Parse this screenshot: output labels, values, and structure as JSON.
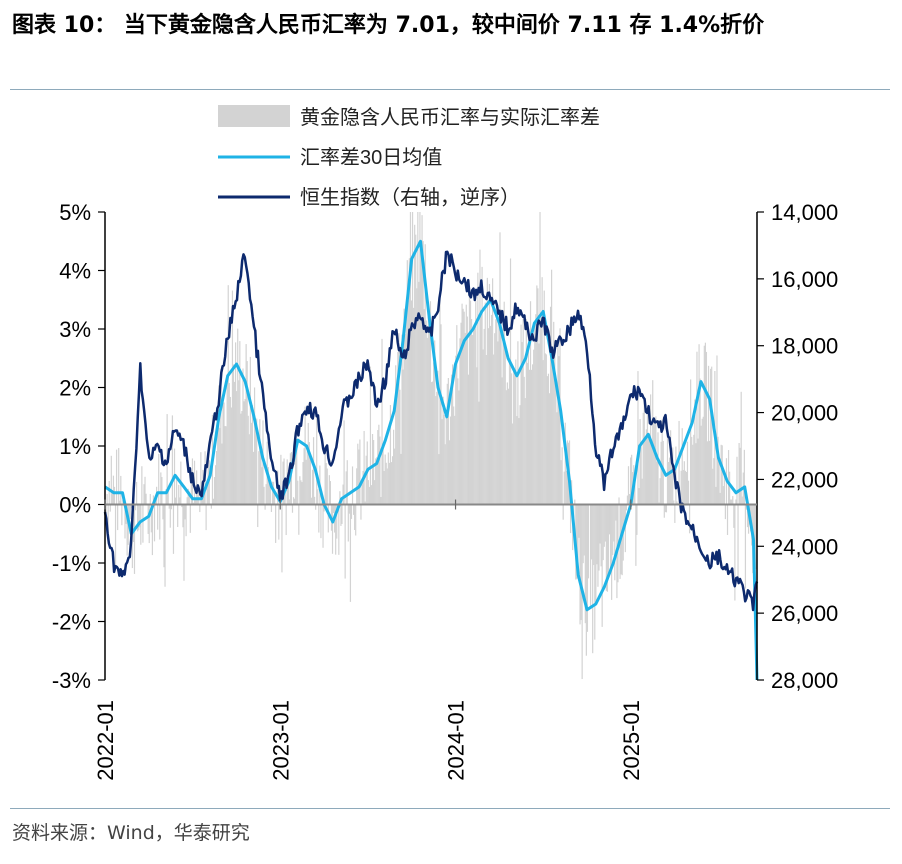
{
  "title": "图表 10： 当下黄金隐含人民币汇率为 7.01，较中间价 7.11 存 1.4%折价",
  "source": "资料来源：Wind，华泰研究",
  "colors": {
    "bars": "#d3d3d3",
    "ma": "#1fb3e6",
    "hsi": "#0d2a6e",
    "axis": "#000000",
    "rule": "#8eaabb"
  },
  "chart_data": {
    "type": "bar+line",
    "title": "",
    "x_ticks": [
      "2022-01",
      "2023-01",
      "2024-01",
      "2025-01"
    ],
    "x_range": [
      2022.0,
      2025.72
    ],
    "left_axis": {
      "min": -3,
      "max": 5,
      "ticks": [
        "5%",
        "4%",
        "3%",
        "2%",
        "1%",
        "0%",
        "-1%",
        "-2%",
        "-3%"
      ]
    },
    "right_axis": {
      "min": 14000,
      "max": 28000,
      "reversed": true,
      "ticks": [
        "14,000",
        "16,000",
        "18,000",
        "20,000",
        "22,000",
        "24,000",
        "26,000",
        "28,000"
      ]
    },
    "legend": [
      {
        "key": "bars",
        "label": "黄金隐含人民币汇率与实际汇率差"
      },
      {
        "key": "ma",
        "label": "汇率差30日均值"
      },
      {
        "key": "hsi",
        "label": "恒生指数（右轴，逆序）"
      }
    ],
    "series": [
      {
        "name": "汇率差30日均值",
        "axis": "left",
        "x": [
          2022.0,
          2022.05,
          2022.1,
          2022.15,
          2022.2,
          2022.25,
          2022.3,
          2022.35,
          2022.4,
          2022.45,
          2022.5,
          2022.55,
          2022.6,
          2022.65,
          2022.7,
          2022.75,
          2022.8,
          2022.85,
          2022.9,
          2022.95,
          2023.0,
          2023.05,
          2023.1,
          2023.15,
          2023.2,
          2023.25,
          2023.3,
          2023.35,
          2023.4,
          2023.45,
          2023.5,
          2023.55,
          2023.6,
          2023.65,
          2023.7,
          2023.75,
          2023.8,
          2023.85,
          2023.9,
          2023.95,
          2024.0,
          2024.05,
          2024.1,
          2024.15,
          2024.2,
          2024.25,
          2024.3,
          2024.35,
          2024.4,
          2024.45,
          2024.5,
          2024.55,
          2024.6,
          2024.65,
          2024.7,
          2024.75,
          2024.8,
          2024.85,
          2024.9,
          2024.95,
          2025.0,
          2025.05,
          2025.1,
          2025.15,
          2025.2,
          2025.25,
          2025.3,
          2025.35,
          2025.4,
          2025.45,
          2025.5,
          2025.55,
          2025.6,
          2025.65,
          2025.7,
          2025.72
        ],
        "values": [
          0.3,
          0.2,
          0.2,
          -0.5,
          -0.3,
          -0.2,
          0.2,
          0.2,
          0.5,
          0.3,
          0.1,
          0.1,
          0.5,
          1.5,
          2.2,
          2.4,
          2.1,
          1.5,
          0.8,
          0.3,
          0.05,
          0.4,
          1.1,
          1.0,
          0.6,
          0.0,
          -0.3,
          0.1,
          0.2,
          0.3,
          0.6,
          0.7,
          1.1,
          1.6,
          2.8,
          4.2,
          4.5,
          3.2,
          2.0,
          1.5,
          2.4,
          2.8,
          3.0,
          3.3,
          3.5,
          3.1,
          2.5,
          2.2,
          2.5,
          3.1,
          3.3,
          2.5,
          1.6,
          0.4,
          -1.2,
          -1.8,
          -1.7,
          -1.4,
          -1.0,
          -0.5,
          0.0,
          1.0,
          1.2,
          0.8,
          0.5,
          0.6,
          1.0,
          1.4,
          2.1,
          1.8,
          0.8,
          0.4,
          0.2,
          0.3,
          -0.6,
          -3.0
        ]
      },
      {
        "name": "恒生指数（右轴，逆序）",
        "axis": "right",
        "x": [
          2022.0,
          2022.05,
          2022.1,
          2022.15,
          2022.2,
          2022.25,
          2022.3,
          2022.35,
          2022.4,
          2022.45,
          2022.5,
          2022.55,
          2022.6,
          2022.65,
          2022.7,
          2022.75,
          2022.8,
          2022.85,
          2022.9,
          2022.95,
          2023.0,
          2023.05,
          2023.1,
          2023.15,
          2023.2,
          2023.25,
          2023.3,
          2023.35,
          2023.4,
          2023.45,
          2023.5,
          2023.55,
          2023.6,
          2023.65,
          2023.7,
          2023.75,
          2023.8,
          2023.85,
          2023.9,
          2023.95,
          2024.0,
          2024.05,
          2024.1,
          2024.15,
          2024.2,
          2024.25,
          2024.3,
          2024.35,
          2024.4,
          2024.45,
          2024.5,
          2024.55,
          2024.6,
          2024.65,
          2024.7,
          2024.75,
          2024.8,
          2024.85,
          2024.9,
          2024.95,
          2025.0,
          2025.05,
          2025.1,
          2025.15,
          2025.2,
          2025.25,
          2025.3,
          2025.35,
          2025.4,
          2025.45,
          2025.5,
          2025.55,
          2025.6,
          2025.65,
          2025.7,
          2025.72
        ],
        "values": [
          23000,
          24500,
          25000,
          24000,
          18600,
          21500,
          21000,
          21500,
          20500,
          21000,
          22000,
          22500,
          21000,
          19500,
          17800,
          16500,
          15200,
          17500,
          19500,
          21500,
          22500,
          22000,
          20500,
          19800,
          20000,
          21000,
          21500,
          20000,
          19500,
          19000,
          18500,
          19800,
          19000,
          17500,
          18500,
          17500,
          17000,
          17800,
          16800,
          15200,
          15800,
          16000,
          16500,
          16200,
          16700,
          17000,
          17500,
          16800,
          17400,
          17800,
          17200,
          18200,
          17900,
          17500,
          17000,
          18000,
          21000,
          22200,
          21000,
          20500,
          19500,
          19300,
          20000,
          20500,
          20300,
          22000,
          23000,
          23500,
          24000,
          24500,
          24300,
          24800,
          25000,
          25400,
          25800,
          25000
        ]
      }
    ],
    "bars_note": "daily gold implied CNY rate minus actual rate, in %; dense grey bars track the 30-day mean with noise"
  }
}
